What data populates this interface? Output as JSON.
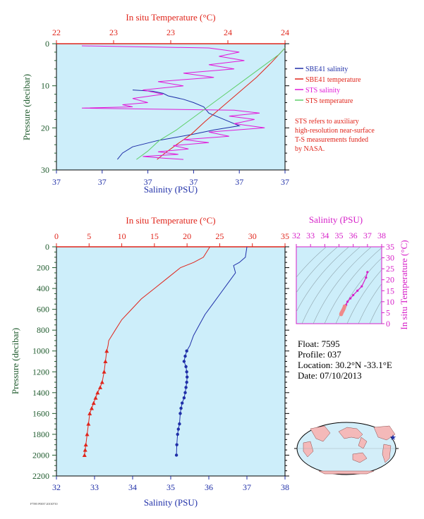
{
  "colors": {
    "salinity": "#1f2fa8",
    "temperature": "#e0251b",
    "sts_salinity": "#e01ad8",
    "sts_temperature": "#5fcf6a",
    "plot_bg": "#cdeefa",
    "axis_left": "#1e5a2c",
    "ts_axis": "#d61fc8"
  },
  "legend": {
    "items": [
      {
        "label": "SBE41 salinity",
        "color": "#1f2fa8"
      },
      {
        "label": "SBE41 temperature",
        "color": "#e0251b"
      },
      {
        "label": "STS salinity",
        "color": "#e01ad8"
      },
      {
        "label": "STS temperature",
        "color": "#5fcf6a"
      }
    ],
    "note": [
      "STS refers to auxiliary",
      "high-resolution near-surface",
      "T-S measurements funded",
      "by NASA."
    ]
  },
  "float_info": {
    "float": "Float:  7595",
    "profile": "Profile:  037",
    "location": "Location:  30.2°N  -33.1°E",
    "date": "Date:  07/10/2013"
  },
  "footnote": "F7595 P0037 20130710",
  "chart_data": [
    {
      "type": "line",
      "title": "",
      "top_axis_label": "In situ Temperature (°C)",
      "top_ticks": [
        "22",
        "23",
        "23",
        "24",
        "24"
      ],
      "top_range": [
        22,
        24
      ],
      "bottom_axis_label": "Salinity (PSU)",
      "bottom_ticks": [
        "37",
        "37",
        "37",
        "37",
        "37",
        "37"
      ],
      "bottom_range": [
        36.95,
        37.4
      ],
      "left_axis_label": "Pressure (decibar)",
      "left_ticks": [
        "0",
        "10",
        "20",
        "30"
      ],
      "ylim": [
        30,
        0
      ],
      "series": [
        {
          "name": "SBE41 salinity",
          "axis": "salinity",
          "x": [
            37.1,
            37.14,
            37.16,
            37.17,
            37.2,
            37.22,
            37.24,
            37.25,
            37.27,
            37.29,
            37.31,
            37.26,
            37.22,
            37.15,
            37.1,
            37.08,
            37.07
          ],
          "y": [
            11,
            11.3,
            11.8,
            12.4,
            13.2,
            14,
            15,
            16.5,
            17.5,
            18.5,
            19.5,
            20.5,
            21.5,
            23,
            24.5,
            26,
            27.5
          ]
        },
        {
          "name": "SBE41 temperature",
          "axis": "temperature",
          "x": [
            22.88,
            22.95,
            23.05,
            23.18,
            23.3,
            23.45,
            23.6,
            23.75,
            23.88,
            24.0
          ],
          "y": [
            27.5,
            26,
            24,
            21.5,
            18.5,
            15,
            11.5,
            8,
            4.5,
            1
          ]
        },
        {
          "name": "STS salinity",
          "axis": "salinity",
          "x": [
            37.0,
            37.25,
            37.31,
            37.27,
            37.32,
            37.25,
            37.3,
            37.2,
            37.26,
            37.15,
            37.2,
            37.12,
            37.16,
            37.1,
            37.13,
            37.08,
            37.1,
            37.0,
            37.3,
            37.35,
            37.29,
            37.34,
            37.3,
            37.36,
            37.25,
            37.29,
            37.2,
            37.25,
            37.18,
            37.21,
            37.15,
            37.19,
            37.12,
            37.16,
            37.2
          ],
          "y": [
            0.5,
            1,
            2,
            3,
            4,
            5,
            6,
            7,
            8,
            9,
            10,
            11,
            12,
            13,
            14,
            14.5,
            15,
            15.3,
            15.8,
            16.5,
            17.2,
            18,
            19,
            20,
            21,
            22,
            22.8,
            23.5,
            24.2,
            25,
            25.7,
            26.3,
            26.8,
            27.2,
            27.5
          ]
        },
        {
          "name": "STS temperature",
          "axis": "temperature",
          "x": [
            22.7,
            22.8,
            22.9,
            23.05,
            23.2,
            23.35,
            23.5,
            23.65,
            23.8,
            23.95,
            24.0
          ],
          "y": [
            27.5,
            25.5,
            23,
            20.5,
            17.5,
            14.5,
            11.5,
            8.5,
            5.5,
            2.5,
            1
          ]
        }
      ]
    },
    {
      "type": "line",
      "title": "",
      "top_axis_label": "In situ Temperature (°C)",
      "top_ticks": [
        "0",
        "5",
        "10",
        "15",
        "20",
        "25",
        "30",
        "35"
      ],
      "top_range": [
        0,
        35
      ],
      "bottom_axis_label": "Salinity (PSU)",
      "bottom_ticks": [
        "32",
        "33",
        "34",
        "35",
        "36",
        "37",
        "38"
      ],
      "bottom_range": [
        32,
        38
      ],
      "left_axis_label": "Pressure (decibar)",
      "left_ticks": [
        "0",
        "200",
        "400",
        "600",
        "800",
        "1000",
        "1200",
        "1400",
        "1600",
        "1800",
        "2000",
        "2200"
      ],
      "ylim": [
        2200,
        0
      ],
      "series": [
        {
          "name": "SBE41 salinity",
          "axis": "salinity",
          "x": [
            37.0,
            36.98,
            36.96,
            36.8,
            36.65,
            36.7,
            36.5,
            36.3,
            36.1,
            35.9,
            35.75,
            35.6,
            35.5,
            35.42,
            35.38,
            35.35,
            35.4,
            35.42,
            35.43,
            35.42,
            35.4,
            35.38,
            35.35,
            35.3,
            35.27,
            35.25,
            35.23,
            35.2,
            35.18,
            35.16,
            35.15
          ],
          "y": [
            0,
            50,
            100,
            150,
            180,
            250,
            350,
            450,
            550,
            650,
            750,
            850,
            950,
            1000,
            1050,
            1100,
            1150,
            1200,
            1250,
            1300,
            1350,
            1400,
            1450,
            1500,
            1550,
            1600,
            1700,
            1750,
            1800,
            1900,
            2000
          ]
        },
        {
          "name": "SBE41 temperature",
          "axis": "temperature",
          "x": [
            23.5,
            22.5,
            21.0,
            19.0,
            17.0,
            15.0,
            13.0,
            11.5,
            10.0,
            9.0,
            8.0,
            7.9,
            7.7,
            7.5,
            7.3,
            7.0,
            6.7,
            6.3,
            6.0,
            5.7,
            5.4,
            5.1,
            4.9,
            4.7,
            4.5,
            4.4,
            4.3
          ],
          "y": [
            0,
            100,
            150,
            200,
            300,
            400,
            500,
            600,
            700,
            800,
            900,
            950,
            1000,
            1100,
            1200,
            1300,
            1350,
            1400,
            1450,
            1500,
            1550,
            1600,
            1700,
            1800,
            1900,
            1950,
            2000
          ]
        }
      ]
    },
    {
      "type": "scatter",
      "title": "",
      "top_axis_label": "Salinity (PSU)",
      "top_ticks": [
        "32",
        "33",
        "34",
        "35",
        "36",
        "37",
        "38"
      ],
      "right_axis_label": "In situ Temperature (°C)",
      "right_ticks": [
        "0",
        "5",
        "10",
        "15",
        "20",
        "25",
        "30",
        "35"
      ],
      "xlim": [
        32,
        38
      ],
      "ylim": [
        0,
        35
      ],
      "series": [
        {
          "name": "T-S",
          "x": [
            37.0,
            36.9,
            36.6,
            36.3,
            36.0,
            35.8,
            35.6,
            35.5,
            35.4,
            35.35,
            35.3,
            35.25,
            35.2,
            35.17,
            35.15
          ],
          "y": [
            23.5,
            21.0,
            17.0,
            15.0,
            13.0,
            11.5,
            10.0,
            8.5,
            7.9,
            7.0,
            6.3,
            5.7,
            5.1,
            4.7,
            4.3
          ]
        }
      ]
    }
  ]
}
